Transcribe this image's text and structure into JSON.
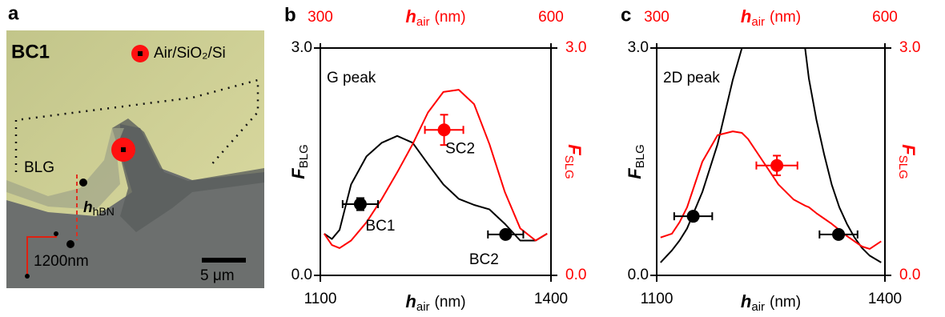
{
  "panel_a": {
    "label": "a",
    "sample": "BC1",
    "legend": "Air/SiO₂/Si",
    "region": "BLG",
    "thickness_symbol": "h",
    "thickness_sub": "hBN",
    "marker": "1200nm",
    "scale_bar": "5 μm"
  },
  "chart_data": [
    {
      "type": "line",
      "panel_label": "b",
      "annotation": "G peak",
      "xlabel": {
        "symbol": "h",
        "sub": "air",
        "unit": "(nm)"
      },
      "x2label": {
        "symbol": "h",
        "sub": "air",
        "unit": "(nm)"
      },
      "ylabel": {
        "symbol": "F",
        "sub": "BLG"
      },
      "y2label": {
        "symbol": "F",
        "sub": "SLG"
      },
      "xlim": [
        1100,
        1400
      ],
      "xticks": [
        1100,
        1400
      ],
      "x2lim": [
        300,
        600
      ],
      "x2ticks": [
        300,
        600
      ],
      "ylim": [
        0,
        3
      ],
      "yticks": [
        {
          "value": 0,
          "label": "0.0"
        },
        {
          "value": 3,
          "label": "3.0"
        }
      ],
      "y2lim": [
        0,
        3
      ],
      "y2ticks": [
        {
          "value": 0,
          "label": "0.0"
        },
        {
          "value": 3,
          "label": "3.0"
        }
      ],
      "x": [
        1105,
        1115,
        1125,
        1140,
        1160,
        1180,
        1200,
        1220,
        1240,
        1260,
        1280,
        1300,
        1320,
        1340,
        1360,
        1380,
        1395
      ],
      "series": [
        {
          "color": "#000000",
          "values": [
            0.55,
            0.48,
            0.6,
            1.2,
            1.57,
            1.75,
            1.84,
            1.75,
            1.47,
            1.2,
            1.01,
            0.93,
            0.87,
            0.68,
            0.46,
            0.46,
            0.55
          ]
        },
        {
          "color": "#ff0000",
          "axis": "y2",
          "values": [
            0.55,
            0.4,
            0.36,
            0.46,
            0.7,
            1.01,
            1.36,
            1.73,
            2.15,
            2.42,
            2.45,
            2.26,
            1.73,
            1.1,
            0.62,
            0.46,
            0.55
          ]
        }
      ],
      "points": [
        {
          "label": "BC1",
          "color": "#000000",
          "x": 1152,
          "y": 0.94,
          "xerr": 23,
          "yerr": 0.08
        },
        {
          "label": "SC2",
          "color": "#ff0000",
          "axis": "y2",
          "x": 1261,
          "y": 1.92,
          "xerr": 25,
          "yerr": 0.2
        },
        {
          "label": "BC2",
          "color": "#000000",
          "x": 1341,
          "y": 0.54,
          "xerr": 23,
          "yerr": 0.05
        }
      ]
    },
    {
      "type": "line",
      "panel_label": "c",
      "annotation": "2D peak",
      "xlabel": {
        "symbol": "h",
        "sub": "air",
        "unit": "(nm)"
      },
      "x2label": {
        "symbol": "h",
        "sub": "air",
        "unit": "(nm)"
      },
      "ylabel": {
        "symbol": "F",
        "sub": "BLG"
      },
      "y2label": {
        "symbol": "F",
        "sub": "SLG"
      },
      "xlim": [
        1100,
        1400
      ],
      "xticks": [
        1100,
        1400
      ],
      "x2lim": [
        300,
        600
      ],
      "x2ticks": [
        300,
        600
      ],
      "ylim": [
        0,
        3
      ],
      "yticks": [
        {
          "value": 0,
          "label": "0.0"
        },
        {
          "value": 3,
          "label": "3.0"
        }
      ],
      "y2lim": [
        0,
        3
      ],
      "y2ticks": [
        {
          "value": 0,
          "label": "0.0"
        },
        {
          "value": 3,
          "label": "3.0"
        }
      ],
      "x": [
        1105,
        1120,
        1130,
        1140,
        1160,
        1180,
        1200,
        1212,
        1220,
        1240,
        1250,
        1260,
        1280,
        1295,
        1300,
        1310,
        1320,
        1330,
        1340,
        1350,
        1360,
        1370,
        1380,
        1395
      ],
      "series": [
        {
          "color": "#000000",
          "values": [
            0.17,
            0.33,
            0.46,
            0.62,
            1.1,
            1.73,
            2.58,
            3.0,
            null,
            null,
            null,
            null,
            null,
            3.0,
            2.6,
            2.05,
            1.6,
            1.2,
            0.9,
            0.68,
            0.5,
            0.36,
            0.26,
            0.17
          ]
        },
        {
          "color": "#ff0000",
          "axis": "y2",
          "values": [
            0.5,
            0.55,
            0.7,
            0.9,
            1.5,
            1.85,
            1.9,
            1.88,
            1.8,
            1.5,
            1.35,
            1.2,
            1.0,
            0.92,
            0.9,
            0.82,
            0.75,
            0.68,
            0.6,
            0.52,
            0.45,
            0.38,
            0.35,
            0.45
          ]
        }
      ],
      "points": [
        {
          "color": "#000000",
          "x": 1148,
          "y": 0.78,
          "xerr": 25,
          "yerr": 0.06
        },
        {
          "color": "#ff0000",
          "axis": "y2",
          "x": 1258,
          "y": 1.45,
          "xerr": 27,
          "yerr": 0.13
        },
        {
          "color": "#000000",
          "x": 1339,
          "y": 0.54,
          "xerr": 25,
          "yerr": 0.05
        }
      ]
    }
  ]
}
